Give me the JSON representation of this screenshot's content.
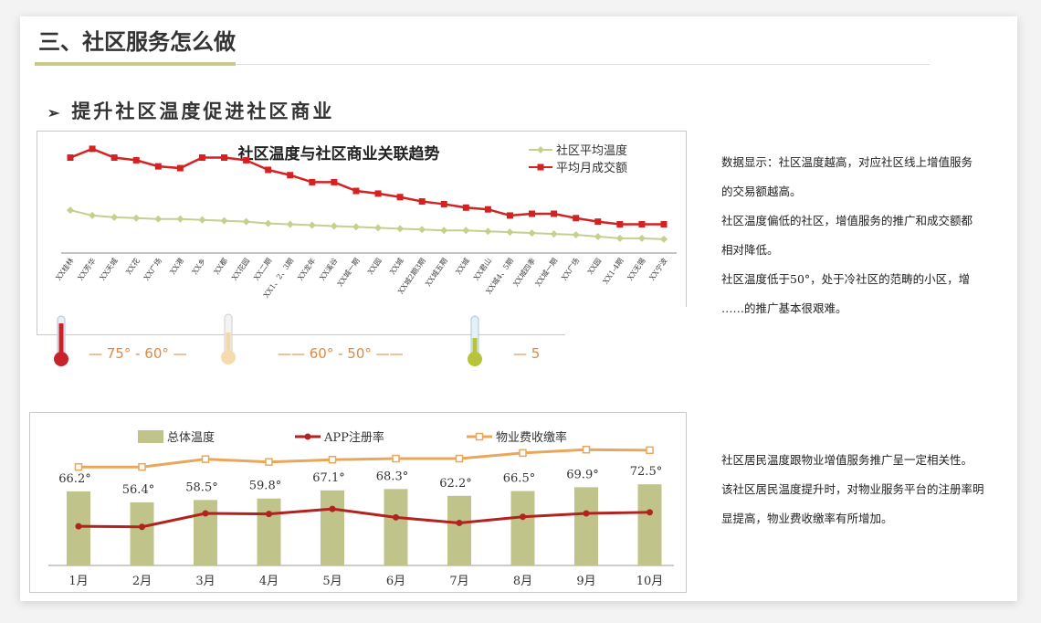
{
  "page": {
    "title": "三、社区服务怎么做",
    "subtitle_marker": "➢",
    "subtitle": "提升社区温度促进社区商业"
  },
  "colors": {
    "accent_line": "#c8c98a",
    "green_series": "#c5cf8e",
    "red_series": "#d42121",
    "bar_fill": "#c0c48a",
    "orange_series": "#e8a75b",
    "dark_red_series": "#b2221f",
    "band_text": "#e08a3c"
  },
  "notes_top": [
    "数据显示：社区温度越高，对应社区线上增值服务",
    "的交易额越高。",
    "社区温度偏低的社区，增值服务的推广和成交额都",
    "相对降低。",
    "社区温度低于50°，处于冷社区的范畴的小区，增",
    "……的推广基本很艰难。"
  ],
  "notes_bottom": [
    "社区居民温度跟物业增值服务推广呈一定相关性。",
    "该社区居民温度提升时，对物业服务平台的注册率明",
    "显提高，物业费收缴率有所增加。"
  ],
  "bands": {
    "band1": "— 75° - 60° —",
    "band2": "—— 60° - 50° ——",
    "band3": "— 5"
  },
  "chart_data": [
    {
      "type": "line",
      "title": "社区温度与社区商业关联趋势",
      "legend_placement": "top-right",
      "x": [
        "XX桂林",
        "XX芳华",
        "XX天城",
        "XX花",
        "XX广场",
        "XX港",
        "XX乡",
        "XX都",
        "XX花园",
        "XX二期",
        "XX1、2、3期",
        "XX龙年",
        "XX溪谷",
        "XX城一期",
        "XX园",
        "XX城",
        "XX城2期3期",
        "XX城五期",
        "XX城",
        "XX君山",
        "XX城4、5期",
        "XX城四季",
        "XX城一期",
        "XX广场",
        "XX园",
        "XX1-4期",
        "XX无锡",
        "XX宁波"
      ],
      "series": [
        {
          "name": "社区平均温度",
          "values": [
            40,
            37,
            36,
            35.5,
            35,
            35,
            34.5,
            34,
            33.5,
            32.5,
            32,
            31.5,
            31,
            30.5,
            30,
            29.5,
            29,
            28.5,
            28.5,
            28,
            27.5,
            27,
            26.5,
            26,
            25,
            24,
            24,
            23.5
          ]
        },
        {
          "name": "平均月成交额",
          "values": [
            70,
            75,
            70,
            68.5,
            65,
            64,
            70,
            70,
            68.5,
            63,
            60,
            56,
            56,
            51,
            49.5,
            47.5,
            45,
            43.5,
            41.5,
            40.5,
            37,
            38,
            38,
            35.5,
            33.5,
            32,
            32,
            32
          ]
        }
      ],
      "ylim": [
        0,
        100
      ],
      "grid": false
    },
    {
      "type": "bar",
      "legend_placement": "top",
      "categories": [
        "1月",
        "2月",
        "3月",
        "4月",
        "5月",
        "6月",
        "7月",
        "8月",
        "9月",
        "10月"
      ],
      "series": [
        {
          "name": "总体温度",
          "type": "bar",
          "values": [
            66.2,
            56.4,
            58.5,
            59.8,
            67.1,
            68.3,
            62.2,
            66.5,
            69.9,
            72.5
          ],
          "labels": [
            "66.2°",
            "56.4°",
            "58.5°",
            "59.8°",
            "67.1°",
            "68.3°",
            "62.2°",
            "66.5°",
            "69.9°",
            "72.5°"
          ]
        },
        {
          "name": "APP注册率",
          "type": "line",
          "values": [
            35,
            34.5,
            46.5,
            46,
            50.5,
            43,
            38,
            43.5,
            46.5,
            47.5
          ]
        },
        {
          "name": "物业费收缴率",
          "type": "line",
          "values": [
            88,
            88,
            95,
            92.5,
            94.5,
            95.5,
            95.5,
            100.5,
            103.5,
            103
          ]
        }
      ],
      "ylim": [
        0,
        120
      ],
      "grid": false
    }
  ]
}
